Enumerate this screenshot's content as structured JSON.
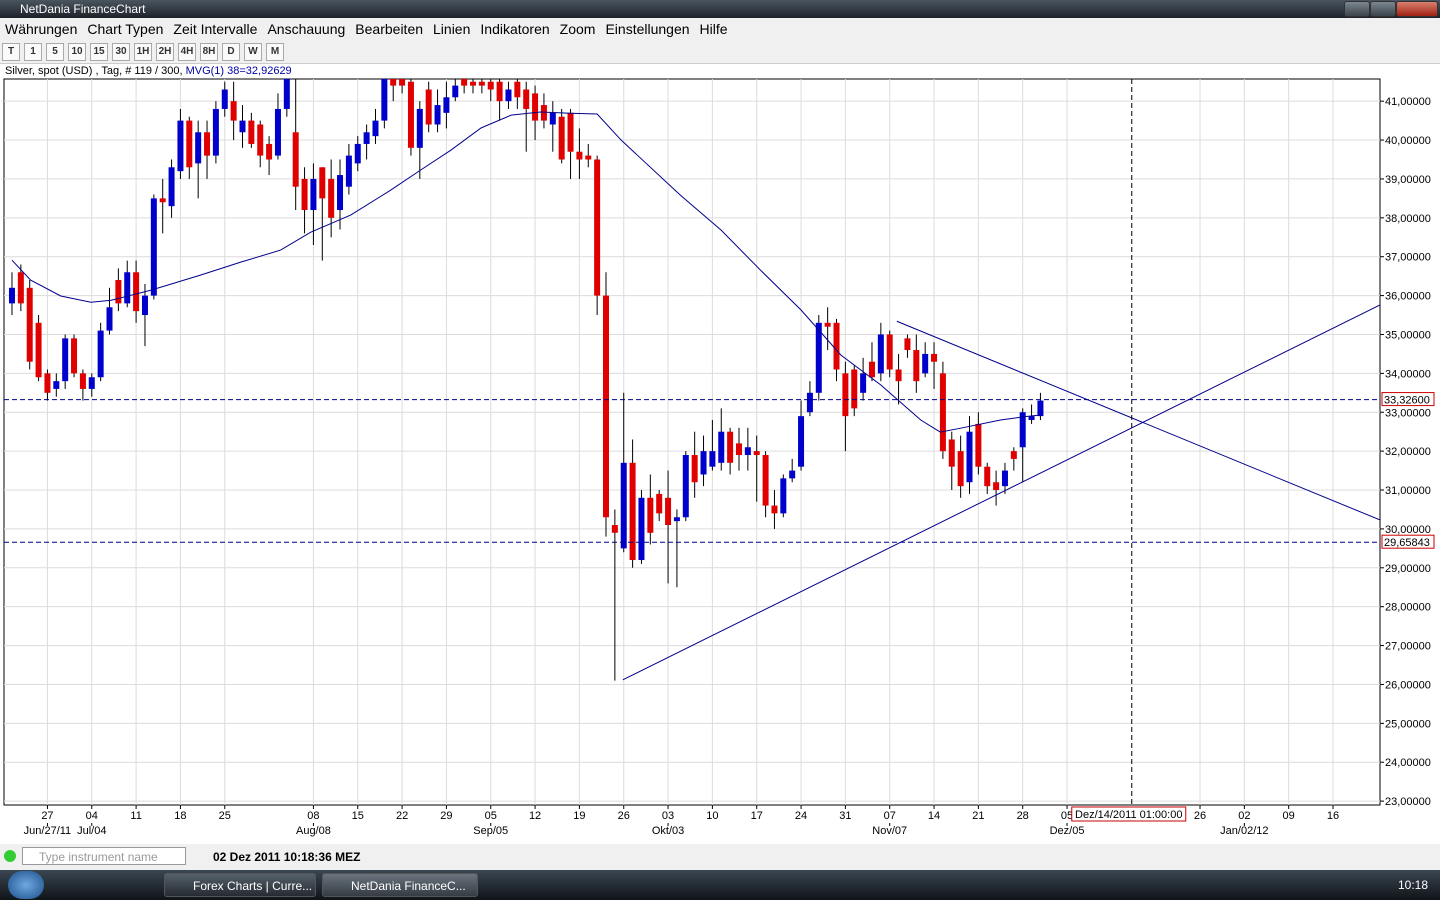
{
  "window": {
    "title": "NetDania FinanceChart"
  },
  "menu": [
    "Währungen",
    "Chart Typen",
    "Zeit Intervalle",
    "Anschauung",
    "Bearbeiten",
    "Linien",
    "Indikatoren",
    "Zoom",
    "Einstellungen",
    "Hilfe"
  ],
  "toolbar": [
    "T",
    "1",
    "5",
    "10",
    "15",
    "30",
    "1H",
    "2H",
    "4H",
    "8H",
    "D",
    "W",
    "M"
  ],
  "chart_data": {
    "type": "candlestick",
    "title": "Silver, spot (USD) , Tag, # 119 / 300,",
    "indicator_label": "MVG(1) 38=32,92629",
    "up_color": "#0000cc",
    "down_color": "#e00000",
    "open": [
      35.8,
      36.6,
      36.2,
      35.3,
      34.0,
      33.6,
      33.8,
      34.9,
      34.0,
      33.6,
      33.9,
      35.1,
      36.4,
      35.8,
      36.6,
      35.5,
      36.0,
      38.5,
      38.3,
      39.2,
      40.5,
      39.4,
      40.2,
      39.6,
      40.8,
      41.0,
      40.2,
      40.5,
      40.4,
      39.9,
      39.6,
      40.8,
      40.2,
      39.0,
      38.2,
      39.3,
      39.0,
      38.2,
      38.8,
      39.4,
      39.9,
      40.1,
      40.5,
      41.6,
      41.6,
      41.5,
      39.8,
      41.3,
      40.4,
      40.7,
      41.1,
      41.6,
      41.5,
      41.5,
      41.5,
      41.5,
      41.0,
      41.5,
      41.3,
      41.2,
      40.9,
      40.4,
      40.6,
      40.7,
      39.7,
      39.6,
      39.5,
      36.0,
      30.1,
      29.5,
      31.7,
      29.2,
      30.8,
      30.9,
      30.8,
      30.2,
      30.3,
      31.9,
      31.4,
      31.6,
      31.7,
      32.5,
      32.2,
      31.9,
      32.0,
      31.9,
      30.6,
      30.4,
      31.3,
      31.6,
      33.0,
      33.5,
      35.3,
      35.3,
      34.0,
      34.1,
      33.5,
      34.3,
      34.0,
      35.0,
      34.1,
      34.9,
      34.6,
      34.0,
      34.5,
      34.0,
      32.3,
      32.0,
      31.2,
      32.7,
      31.6,
      31.2,
      31.1,
      32.0,
      32.1,
      32.8,
      32.9
    ],
    "high": [
      36.6,
      36.8,
      36.4,
      35.5,
      34.1,
      34.0,
      35.0,
      35.0,
      34.1,
      34.0,
      35.3,
      36.2,
      36.7,
      36.9,
      36.9,
      36.3,
      38.6,
      39.0,
      39.5,
      40.8,
      40.6,
      40.5,
      40.5,
      41.0,
      41.5,
      41.5,
      40.9,
      40.7,
      40.5,
      40.1,
      41.2,
      41.7,
      41.7,
      39.3,
      39.4,
      39.3,
      39.5,
      39.5,
      39.9,
      40.1,
      40.4,
      40.8,
      41.7,
      41.7,
      41.7,
      41.7,
      41.0,
      41.5,
      41.3,
      41.5,
      41.7,
      41.7,
      41.7,
      41.6,
      41.6,
      41.6,
      41.5,
      41.6,
      41.5,
      41.4,
      41.2,
      41.0,
      40.8,
      40.8,
      40.3,
      39.9,
      39.6,
      36.6,
      30.5,
      33.5,
      32.3,
      31.0,
      31.4,
      31.0,
      31.5,
      30.5,
      32.0,
      32.5,
      32.4,
      32.8,
      33.1,
      32.6,
      32.6,
      32.6,
      32.4,
      32.0,
      31.0,
      31.4,
      31.8,
      33.3,
      33.8,
      35.5,
      35.7,
      35.4,
      34.3,
      34.2,
      34.4,
      34.8,
      35.3,
      35.1,
      34.5,
      35.0,
      35.0,
      34.8,
      34.8,
      34.3,
      32.5,
      32.4,
      32.9,
      33.0,
      31.7,
      31.5,
      31.7,
      32.1,
      33.1,
      33.2,
      33.5
    ],
    "low": [
      35.5,
      35.6,
      34.1,
      33.8,
      33.3,
      33.4,
      33.6,
      33.9,
      33.3,
      33.4,
      33.8,
      35.0,
      35.6,
      35.7,
      35.3,
      34.7,
      35.9,
      37.6,
      38.0,
      39.0,
      39.0,
      38.5,
      39.0,
      39.4,
      40.6,
      40.0,
      39.8,
      39.8,
      39.3,
      39.1,
      39.5,
      40.6,
      38.2,
      37.6,
      37.3,
      36.9,
      37.5,
      37.7,
      38.6,
      39.2,
      39.5,
      39.9,
      40.3,
      41.0,
      41.2,
      39.6,
      39.0,
      40.2,
      40.2,
      40.3,
      41.0,
      41.2,
      41.2,
      41.2,
      41.0,
      40.5,
      40.8,
      40.8,
      39.7,
      40.0,
      40.3,
      39.7,
      39.4,
      39.0,
      39.0,
      39.3,
      35.5,
      29.8,
      26.1,
      29.4,
      29.0,
      29.1,
      29.6,
      30.2,
      28.6,
      28.5,
      30.2,
      30.8,
      31.1,
      31.5,
      31.5,
      31.4,
      31.5,
      31.5,
      30.7,
      30.3,
      30.0,
      30.3,
      31.2,
      31.5,
      32.9,
      33.3,
      34.6,
      33.8,
      32.0,
      32.9,
      33.3,
      33.8,
      33.8,
      33.9,
      33.2,
      34.4,
      33.5,
      33.9,
      33.6,
      31.8,
      31.0,
      30.8,
      30.9,
      31.4,
      30.9,
      30.6,
      30.9,
      31.5,
      31.2,
      32.7,
      32.8
    ],
    "close": [
      36.2,
      35.8,
      34.3,
      33.9,
      33.5,
      33.8,
      34.9,
      34.0,
      33.6,
      33.9,
      35.1,
      35.7,
      35.8,
      36.6,
      35.6,
      36.0,
      38.5,
      38.4,
      39.3,
      40.5,
      39.3,
      40.2,
      39.6,
      40.8,
      41.3,
      40.5,
      40.5,
      39.9,
      39.6,
      39.5,
      40.8,
      41.6,
      38.8,
      38.2,
      39.0,
      38.5,
      38.0,
      39.1,
      39.6,
      39.9,
      40.2,
      40.5,
      41.6,
      41.4,
      41.4,
      39.8,
      40.8,
      40.4,
      40.9,
      41.1,
      41.4,
      41.4,
      41.4,
      41.4,
      41.3,
      41.0,
      41.3,
      41.1,
      40.8,
      40.5,
      40.5,
      40.7,
      39.5,
      39.7,
      39.5,
      39.5,
      36.0,
      30.3,
      29.9,
      31.7,
      29.2,
      30.8,
      29.9,
      30.4,
      30.1,
      30.3,
      31.9,
      31.2,
      32.0,
      32.0,
      32.5,
      31.7,
      31.9,
      32.1,
      31.9,
      30.6,
      30.4,
      31.3,
      31.5,
      32.9,
      33.5,
      35.3,
      35.2,
      34.1,
      32.9,
      33.1,
      34.0,
      33.9,
      35.0,
      34.1,
      33.8,
      34.6,
      33.8,
      34.5,
      34.3,
      32.0,
      31.6,
      31.1,
      32.5,
      31.6,
      31.1,
      31.0,
      31.5,
      31.8,
      33.0,
      32.9,
      33.3
    ],
    "xlim": [
      -0.9,
      154.3
    ],
    "ylim": [
      22.9,
      41.57
    ],
    "grid": true,
    "yticks": [
      {
        "value": 23,
        "label": "23,00000"
      },
      {
        "value": 24,
        "label": "24,00000"
      },
      {
        "value": 25,
        "label": "25,00000"
      },
      {
        "value": 26,
        "label": "26,00000"
      },
      {
        "value": 27,
        "label": "27,00000"
      },
      {
        "value": 28,
        "label": "28,00000"
      },
      {
        "value": 29,
        "label": "29,00000"
      },
      {
        "value": 30,
        "label": "30,00000"
      },
      {
        "value": 31,
        "label": "31,00000"
      },
      {
        "value": 32,
        "label": "32,00000"
      },
      {
        "value": 33,
        "label": "33,00000"
      },
      {
        "value": 34,
        "label": "34,00000"
      },
      {
        "value": 35,
        "label": "35,00000"
      },
      {
        "value": 36,
        "label": "36,00000"
      },
      {
        "value": 37,
        "label": "37,00000"
      },
      {
        "value": 38,
        "label": "38,00000"
      },
      {
        "value": 39,
        "label": "39,00000"
      },
      {
        "value": 40,
        "label": "40,00000"
      },
      {
        "value": 41,
        "label": "41,00000"
      }
    ],
    "xticks": [
      {
        "value": 4,
        "label": "27"
      },
      {
        "value": 9,
        "label": "04"
      },
      {
        "value": 14,
        "label": "11"
      },
      {
        "value": 19,
        "label": "18"
      },
      {
        "value": 24,
        "label": "25"
      },
      {
        "value": 34,
        "label": "08"
      },
      {
        "value": 39,
        "label": "15"
      },
      {
        "value": 44,
        "label": "22"
      },
      {
        "value": 49,
        "label": "29"
      },
      {
        "value": 54,
        "label": "05"
      },
      {
        "value": 59,
        "label": "12"
      },
      {
        "value": 64,
        "label": "19"
      },
      {
        "value": 69,
        "label": "26"
      },
      {
        "value": 74,
        "label": "03"
      },
      {
        "value": 79,
        "label": "10"
      },
      {
        "value": 84,
        "label": "17"
      },
      {
        "value": 89,
        "label": "24"
      },
      {
        "value": 94,
        "label": "31"
      },
      {
        "value": 99,
        "label": "07"
      },
      {
        "value": 104,
        "label": "14"
      },
      {
        "value": 109,
        "label": "21"
      },
      {
        "value": 114,
        "label": "28"
      },
      {
        "value": 119,
        "label": "05"
      },
      {
        "value": 134,
        "label": "26"
      },
      {
        "value": 139,
        "label": "02"
      },
      {
        "value": 144,
        "label": "09"
      },
      {
        "value": 149,
        "label": "16"
      }
    ],
    "xticks_month": [
      {
        "value": 4,
        "label": "Jun/27/11"
      },
      {
        "value": 9,
        "label": "Jul/04"
      },
      {
        "value": 34,
        "label": "Aug/08"
      },
      {
        "value": 54,
        "label": "Sep/05"
      },
      {
        "value": 74,
        "label": "Okt/03"
      },
      {
        "value": 99,
        "label": "Nov/07"
      },
      {
        "value": 119,
        "label": "Dez/05"
      },
      {
        "value": 139,
        "label": "Jan/02/12"
      }
    ],
    "moving_average": {
      "color": "#00008b",
      "x": [
        0,
        2.1,
        5.5,
        8.9,
        11.2,
        15.7,
        21.3,
        25.8,
        30.3,
        33.7,
        38.2,
        42.7,
        46.1,
        49.5,
        52.9,
        56.3,
        59.6,
        63.0,
        66.0,
        68.7,
        75.4,
        80.0,
        84.4,
        89.0,
        93.5,
        98.0,
        102.5,
        104.7,
        107.0,
        111.5,
        114,
        116
      ],
      "values": [
        36.91,
        36.4,
        35.99,
        35.83,
        35.88,
        36.14,
        36.53,
        36.86,
        37.17,
        37.63,
        38.07,
        38.71,
        39.23,
        39.74,
        40.31,
        40.64,
        40.72,
        40.69,
        40.67,
        40.0,
        38.58,
        37.68,
        36.66,
        35.63,
        34.47,
        33.7,
        32.8,
        32.49,
        32.59,
        32.8,
        32.88,
        32.93
      ]
    },
    "price_lines": [
      {
        "value": 33.326,
        "label": "33,32600"
      },
      {
        "value": 29.65843,
        "label": "29,65843"
      }
    ],
    "trend_lines": [
      {
        "color": "#00008b",
        "x": [
          68.9,
          154.3
        ],
        "values": [
          26.12,
          35.76
        ]
      },
      {
        "color": "#00008b",
        "x": [
          99.8,
          154.3
        ],
        "values": [
          35.34,
          30.23
        ]
      }
    ],
    "crosshair": {
      "value": 126.3,
      "label": "Dez/14/2011 01:00:00"
    }
  },
  "status": {
    "search_placeholder": "Type instrument name",
    "datetime": "02 Dez 2011 10:18:36 MEZ"
  },
  "taskbar": {
    "items": [
      "Forex Charts | Curre...",
      "NetDania FinanceC..."
    ],
    "clock": "10:18"
  }
}
